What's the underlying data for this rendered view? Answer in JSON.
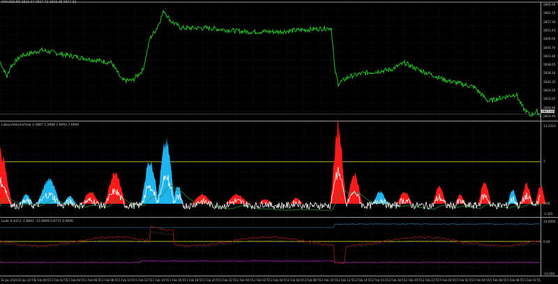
{
  "window": {
    "main_title": "XAUUSD,M5 2816.37 2817.72 2816.36 2817.02",
    "indicator1_title": "LabourVolumeFlow 2.2887 1.2688 1.6693 7.0000",
    "indicator2_title": "Lude 8.4413 -1.8841 -13.9869 0.8772 0.0000"
  },
  "price_axis": [
    "2865.00",
    "2861.15",
    "2857.30",
    "2853.45",
    "2849.60",
    "2845.70",
    "2841.80",
    "2838.05",
    "2834.20",
    "2830.35",
    "2826.50",
    "2822.65",
    "2818.80",
    "2814.95"
  ],
  "current_price": "2817.02",
  "indicator1_axis": {
    "top": "13.3333",
    "level": "7",
    "zero": "0.00",
    "bottom": "-1.425"
  },
  "indicator2_axis": {
    "top": "10.0000",
    "zero": "0.00",
    "bottom": "-10.000"
  },
  "time_axis": [
    "31 Jan 2024",
    "31 Jan 22:55",
    "1 Feb 00:55",
    "1 Feb 02:55",
    "1 Feb 04:55",
    "1 Feb 06:55",
    "1 Feb 08:55",
    "1 Feb 10:55",
    "1 Feb 12:55",
    "1 Feb 14:55",
    "1 Feb 16:55",
    "1 Feb 18:55",
    "1 Feb 20:55",
    "1 Feb 22:55",
    "2 Feb 00:55",
    "2 Feb 02:55",
    "2 Feb 04:55",
    "2 Feb 06:55",
    "2 Feb 08:55",
    "2 Feb 10:55",
    "2 Feb 12:55",
    "2 Feb 14:55",
    "2 Feb 16:55",
    "2 Feb 18:55",
    "2 Feb 20:55",
    "2 Feb 22:55",
    "5 Feb 00:55",
    "5 Feb 02:55",
    "5 Feb 04:55",
    "5 Feb 06:55",
    "5 Feb 08:55",
    "5 Feb 10:55"
  ],
  "colors": {
    "price": "#22c322",
    "bull": "#1eb4f0",
    "bear": "#ff1a1a",
    "signal": "#ffffff",
    "slow": "#2a8a2a",
    "level": "#b4b428",
    "blue_line": "#1e6e9a",
    "purple_line": "#b428b4",
    "red_line": "#a01818",
    "grid": "#2a2a2a"
  },
  "price_series": [
    2840.4,
    2833.6,
    2838,
    2842.8,
    2845.3,
    2843.5,
    2841.3,
    2839.8,
    2832,
    2832,
    2836.6,
    2850.5,
    2855.1,
    2862.8,
    2858.2,
    2855.1,
    2855.1,
    2853.5,
    2853.5,
    2854.4,
    2855.1,
    2855.1,
    2836.7,
    2830.5,
    2833.6,
    2835.1,
    2836.7,
    2839.7,
    2836.7,
    2832,
    2829,
    2822.8,
    2824.4,
    2825.9,
    2819.7,
    2816.6,
    2818.2,
    2816.6
  ],
  "price_series_index": [
    0,
    10,
    15,
    30,
    60,
    90,
    130,
    160,
    175,
    190,
    205,
    215,
    225,
    235,
    245,
    260,
    300,
    350,
    400,
    440,
    470,
    475,
    480,
    485,
    500,
    520,
    560,
    580,
    600,
    640,
    680,
    700,
    720,
    740,
    750,
    760,
    770,
    775
  ],
  "histogram": [
    {
      "c": 0,
      "w": 18,
      "v": 8.4,
      "t": "bear"
    },
    {
      "c": 38,
      "w": 10,
      "v": 1.5,
      "t": "bull"
    },
    {
      "c": 70,
      "w": 18,
      "v": 4,
      "t": "bull"
    },
    {
      "c": 100,
      "w": 10,
      "v": 1.2,
      "t": "bull"
    },
    {
      "c": 130,
      "w": 14,
      "v": 2,
      "t": "bear"
    },
    {
      "c": 165,
      "w": 16,
      "v": 5,
      "t": "bear"
    },
    {
      "c": 215,
      "w": 14,
      "v": 7,
      "t": "bull"
    },
    {
      "c": 238,
      "w": 14,
      "v": 10,
      "t": "bull"
    },
    {
      "c": 255,
      "w": 8,
      "v": 3,
      "t": "bull"
    },
    {
      "c": 290,
      "w": 16,
      "v": 1.5,
      "t": "bear"
    },
    {
      "c": 340,
      "w": 18,
      "v": 1.5,
      "t": "bear"
    },
    {
      "c": 380,
      "w": 10,
      "v": 0.8,
      "t": "bear"
    },
    {
      "c": 425,
      "w": 10,
      "v": 1,
      "t": "bear"
    },
    {
      "c": 485,
      "w": 12,
      "v": 12.5,
      "t": "bear"
    },
    {
      "c": 508,
      "w": 12,
      "v": 5,
      "t": "bear"
    },
    {
      "c": 545,
      "w": 12,
      "v": 2,
      "t": "bull"
    },
    {
      "c": 580,
      "w": 12,
      "v": 2,
      "t": "bear"
    },
    {
      "c": 630,
      "w": 10,
      "v": 3,
      "t": "bear"
    },
    {
      "c": 660,
      "w": 8,
      "v": 1.5,
      "t": "bear"
    },
    {
      "c": 695,
      "w": 10,
      "v": 3.5,
      "t": "bear"
    },
    {
      "c": 735,
      "w": 8,
      "v": 2.2,
      "t": "bull"
    },
    {
      "c": 755,
      "w": 10,
      "v": 3.2,
      "t": "bear"
    },
    {
      "c": 775,
      "w": 8,
      "v": 3,
      "t": "bear"
    }
  ]
}
